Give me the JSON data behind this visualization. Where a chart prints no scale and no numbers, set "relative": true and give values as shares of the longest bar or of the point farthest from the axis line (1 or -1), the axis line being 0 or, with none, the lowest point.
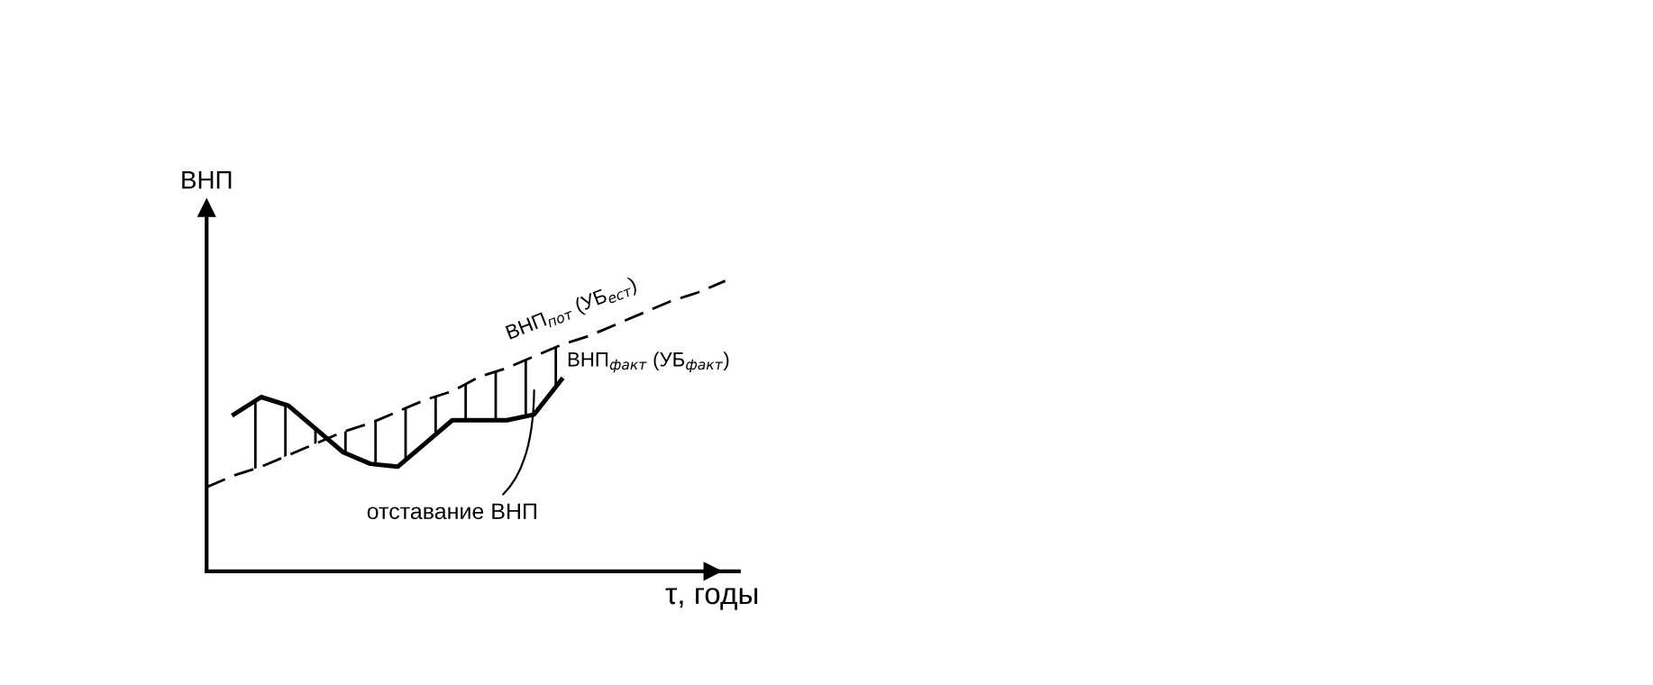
{
  "chart_data": {
    "type": "line",
    "relative": true,
    "xlabel": "τ, годы",
    "ylabel": "ВНП",
    "categories": [
      null,
      null,
      null,
      null,
      null,
      null,
      null,
      null,
      null,
      null,
      null,
      null,
      null,
      null,
      null,
      null,
      null,
      null,
      null,
      null
    ],
    "series": [
      {
        "name": "ВНП$_{пот}$ (УБ$_{ест}$)",
        "color": "#000000",
        "line_style": "dashed",
        "values": [
          0.29,
          0.33,
          0.36,
          0.4,
          0.44,
          0.48,
          0.51,
          0.55,
          0.59,
          0.62,
          0.67,
          0.7,
          0.74,
          0.78,
          0.81,
          0.85,
          0.89,
          0.93,
          0.96,
          1.0
        ]
      },
      {
        "name": "ВНП$_{факт}$ (УБ$_{факт}$)",
        "color": "#000000",
        "line_style": "solid",
        "values": [
          null,
          0.54,
          0.6,
          0.57,
          0.49,
          0.41,
          0.37,
          0.36,
          0.44,
          0.52,
          0.52,
          0.52,
          0.54,
          0.66,
          null,
          null,
          null,
          null,
          null,
          null
        ]
      }
    ],
    "annotations": [
      "отставание ВНП"
    ],
    "legend": false
  }
}
